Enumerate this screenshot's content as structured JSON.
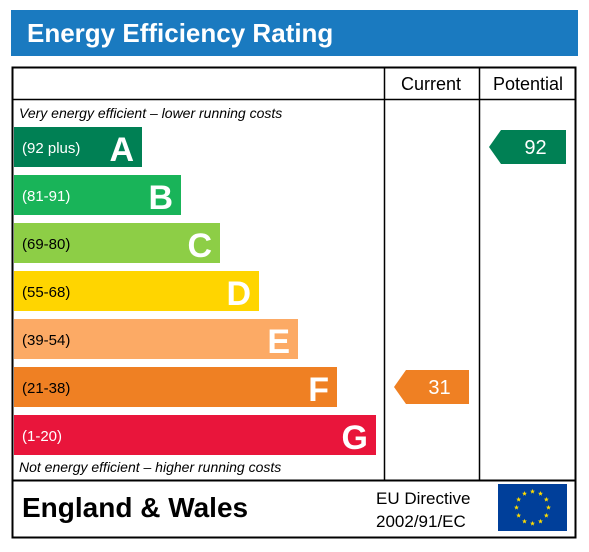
{
  "title": "Energy Efficiency Rating",
  "columns": {
    "current": "Current",
    "potential": "Potential"
  },
  "top_note": "Very energy efficient - lower running costs",
  "bottom_note": "Not energy efficient - higher running costs",
  "footer": {
    "region": "England & Wales",
    "directive_line1": "EU Directive",
    "directive_line2": "2002/91/EC"
  },
  "colors": {
    "title_bar": "#1a7ac0",
    "eu_flag": "#003f9a",
    "eu_stars": "#ffdd00"
  },
  "icons": {
    "eu_flag": "eu-flag-icon"
  },
  "chart_data": {
    "type": "bar",
    "title": "Energy Efficiency Rating",
    "categories": [
      "A",
      "B",
      "C",
      "D",
      "E",
      "F",
      "G"
    ],
    "bands": [
      {
        "letter": "A",
        "range": "(92 plus)",
        "color": "#008054"
      },
      {
        "letter": "B",
        "range": "(81-91)",
        "color": "#19b459"
      },
      {
        "letter": "C",
        "range": "(69-80)",
        "color": "#8dce46"
      },
      {
        "letter": "D",
        "range": "(55-68)",
        "color": "#ffd500"
      },
      {
        "letter": "E",
        "range": "(39-54)",
        "color": "#fcaa65"
      },
      {
        "letter": "F",
        "range": "(21-38)",
        "color": "#ef8023"
      },
      {
        "letter": "G",
        "range": "(1-20)",
        "color": "#e9153b"
      }
    ],
    "current": {
      "value": 31,
      "band": "F",
      "color": "#ef8023"
    },
    "potential": {
      "value": 92,
      "band": "A",
      "color": "#008054"
    }
  }
}
